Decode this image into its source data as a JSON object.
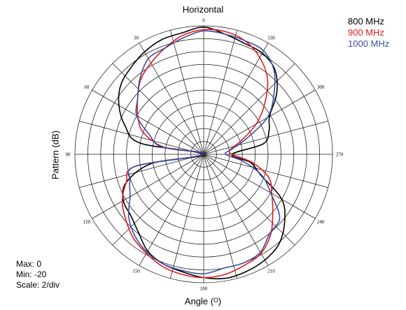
{
  "chart_data": {
    "type": "polar-line",
    "title": "Horizontal",
    "xlabel": "Angle (ᴼ)",
    "ylabel": "Pattern (dB)",
    "info": [
      "Max: 0",
      "Min: -20",
      "Scale: 2/div"
    ],
    "r_range": [
      -20,
      0
    ],
    "r_scale_per_div": 2,
    "angle_ticks": [
      "0",
      "30",
      "60",
      "90",
      "120",
      "150",
      "180",
      "210",
      "240",
      "270",
      "300",
      "330"
    ],
    "angle_direction": "counterclockwise from top",
    "legend_position": "top-right",
    "series": [
      {
        "name": "800 MHz",
        "color": "#000000",
        "angles": [
          0,
          10,
          20,
          30,
          40,
          50,
          60,
          70,
          80,
          90,
          100,
          110,
          120,
          130,
          140,
          150,
          160,
          170,
          180,
          190,
          200,
          210,
          220,
          230,
          240,
          250,
          260,
          270,
          280,
          290,
          300,
          310,
          320,
          330,
          340,
          350
        ],
        "values": [
          -0.2,
          -0.8,
          -1.0,
          -1.6,
          -2.4,
          -3.2,
          -4.8,
          -7.0,
          -10.0,
          -20.0,
          -11.8,
          -7.2,
          -5.6,
          -5.2,
          -4.2,
          -2.6,
          -1.8,
          -1.4,
          -0.8,
          -0.4,
          -0.6,
          -1.0,
          -1.8,
          -3.6,
          -6.0,
          -10.6,
          -12.6,
          -15.6,
          -10.6,
          -9.2,
          -8.2,
          -5.2,
          -2.8,
          -1.8,
          -1.6,
          -1.0
        ]
      },
      {
        "name": "900 MHz",
        "color": "#e8191e",
        "angles": [
          0,
          10,
          20,
          30,
          40,
          50,
          60,
          70,
          80,
          90,
          100,
          110,
          120,
          130,
          140,
          150,
          160,
          170,
          180,
          190,
          200,
          210,
          220,
          230,
          240,
          250,
          260,
          270,
          280,
          290,
          300,
          310,
          320,
          330,
          340,
          350
        ],
        "values": [
          -0.6,
          -1.2,
          -2.4,
          -3.6,
          -4.8,
          -6.6,
          -8.2,
          -10.0,
          -13.8,
          -20.0,
          -9.2,
          -7.2,
          -5.4,
          -4.2,
          -3.0,
          -2.2,
          -1.4,
          -1.0,
          -0.8,
          -1.0,
          -1.6,
          -2.2,
          -3.8,
          -6.0,
          -7.8,
          -9.2,
          -12.2,
          -15.6,
          -15.8,
          -13.8,
          -10.6,
          -7.6,
          -4.6,
          -2.6,
          -1.2,
          -0.6
        ]
      },
      {
        "name": "1000 MHz",
        "color": "#3a4fa3",
        "angles": [
          0,
          10,
          20,
          30,
          40,
          50,
          60,
          70,
          80,
          90,
          100,
          110,
          120,
          130,
          140,
          150,
          160,
          170,
          180,
          190,
          200,
          210,
          220,
          230,
          240,
          250,
          260,
          270,
          280,
          290,
          300,
          310,
          320,
          330,
          340,
          350
        ],
        "values": [
          -0.8,
          -1.6,
          -2.4,
          -2.8,
          -4.6,
          -6.6,
          -8.0,
          -11.0,
          -13.4,
          -20.0,
          -9.2,
          -7.8,
          -6.8,
          -4.8,
          -3.4,
          -2.4,
          -1.8,
          -1.6,
          -1.4,
          -2.0,
          -2.0,
          -2.4,
          -4.0,
          -4.6,
          -8.0,
          -10.4,
          -13.8,
          -16.6,
          -15.6,
          -13.0,
          -8.6,
          -5.8,
          -3.0,
          -1.4,
          -1.2,
          -1.0
        ]
      }
    ]
  }
}
